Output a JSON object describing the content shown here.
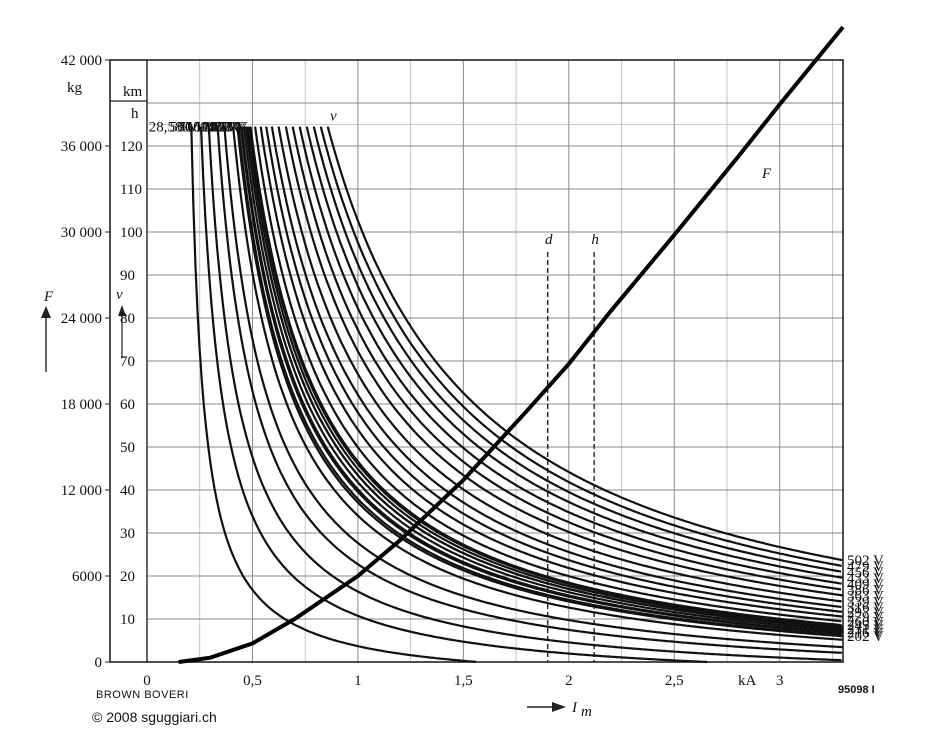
{
  "chart_data": {
    "type": "line",
    "title": "",
    "x_axis": {
      "label": "I",
      "label_sub": "m",
      "unit": "kA",
      "range": [
        0,
        3.3
      ],
      "ticks": [
        {
          "v": 0,
          "t": "0"
        },
        {
          "v": 0.5,
          "t": "0,5"
        },
        {
          "v": 1,
          "t": "1"
        },
        {
          "v": 1.5,
          "t": "1,5"
        },
        {
          "v": 2,
          "t": "2"
        },
        {
          "v": 2.5,
          "t": "2,5"
        },
        {
          "v": 3,
          "t": "3"
        }
      ]
    },
    "y_axis_force": {
      "label": "F",
      "unit": "kg",
      "range": [
        0,
        42000
      ],
      "ticks": [
        {
          "v": 0,
          "t": "0"
        },
        {
          "v": 6000,
          "t": "6000"
        },
        {
          "v": 12000,
          "t": "12 000"
        },
        {
          "v": 18000,
          "t": "18 000"
        },
        {
          "v": 24000,
          "t": "24 000"
        },
        {
          "v": 30000,
          "t": "30 000"
        },
        {
          "v": 36000,
          "t": "36 000"
        },
        {
          "v": 42000,
          "t": "42 000"
        }
      ]
    },
    "y_axis_speed": {
      "label": "v",
      "unit_num": "km",
      "unit_den": "h",
      "range": [
        0,
        140
      ],
      "ticks": [
        {
          "v": 10,
          "t": "10"
        },
        {
          "v": 20,
          "t": "20"
        },
        {
          "v": 30,
          "t": "30"
        },
        {
          "v": 40,
          "t": "40"
        },
        {
          "v": 50,
          "t": "50"
        },
        {
          "v": 60,
          "t": "60"
        },
        {
          "v": 70,
          "t": "70"
        },
        {
          "v": 80,
          "t": "80"
        },
        {
          "v": 90,
          "t": "90"
        },
        {
          "v": 100,
          "t": "100"
        },
        {
          "v": 110,
          "t": "110"
        },
        {
          "v": 120,
          "t": "120"
        }
      ]
    },
    "force_curve": {
      "name": "F",
      "points": [
        [
          0.15,
          0
        ],
        [
          0.3,
          300
        ],
        [
          0.5,
          1300
        ],
        [
          0.7,
          3000
        ],
        [
          1.0,
          6000
        ],
        [
          1.2,
          8500
        ],
        [
          1.5,
          12700
        ],
        [
          1.8,
          17500
        ],
        [
          2.0,
          20800
        ],
        [
          2.2,
          24500
        ],
        [
          2.5,
          29800
        ],
        [
          2.8,
          35200
        ],
        [
          3.0,
          38900
        ],
        [
          3.3,
          44300
        ]
      ]
    },
    "speed_cap": {
      "label": "v",
      "value": 124.5
    },
    "voltage_series": [
      {
        "name": "192 V",
        "k": 38.3,
        "side": "left"
      },
      {
        "name": "183 V",
        "k": 41.6,
        "side": "left"
      },
      {
        "name": "173 V",
        "k": 43.8,
        "side": "left"
      },
      {
        "name": "163 V",
        "k": 42.8,
        "side": "left"
      },
      {
        "name": "153 V",
        "k": 40.2,
        "side": "left"
      },
      {
        "name": "143 V",
        "k": 36.9,
        "side": "left"
      },
      {
        "name": "129 V",
        "k": 33.6,
        "side": "left"
      },
      {
        "name": "109 V",
        "k": 28.2,
        "side": "left"
      },
      {
        "name": "89,5 V",
        "k": 24.0,
        "side": "left"
      },
      {
        "name": "70 V",
        "k": 18.6,
        "side": "left"
      },
      {
        "name": "50 V",
        "k": 13.8,
        "side": "left"
      },
      {
        "name": "28,5 V",
        "k": 7.8,
        "side": "left"
      },
      {
        "name": "202 V",
        "k": 36.2,
        "side": "right"
      },
      {
        "name": "216 V",
        "k": 38.8,
        "side": "right"
      },
      {
        "name": "231 V",
        "k": 41.6,
        "side": "right"
      },
      {
        "name": "245 V",
        "k": 44.3,
        "side": "right"
      },
      {
        "name": "260 V",
        "k": 47.1,
        "side": "right"
      },
      {
        "name": "279 V",
        "k": 50.6,
        "side": "right"
      },
      {
        "name": "297 V",
        "k": 54.0,
        "side": "right"
      },
      {
        "name": "316 V",
        "k": 57.5,
        "side": "right"
      },
      {
        "name": "339 V",
        "k": 61.6,
        "side": "right"
      },
      {
        "name": "363 V",
        "k": 66.1,
        "side": "right"
      },
      {
        "name": "386 V",
        "k": 70.3,
        "side": "right"
      },
      {
        "name": "409 V",
        "k": 74.6,
        "side": "right"
      },
      {
        "name": "433 V",
        "k": 79.0,
        "side": "right"
      },
      {
        "name": "456 V",
        "k": 83.3,
        "side": "right"
      },
      {
        "name": "479 V",
        "k": 87.6,
        "side": "right"
      },
      {
        "name": "502 V",
        "k": 91.9,
        "side": "right"
      }
    ],
    "markers": [
      {
        "label": "d",
        "x": 1.9
      },
      {
        "label": "h",
        "x": 2.12
      }
    ],
    "grid": true
  },
  "footer": {
    "maker": "BROWN BOVERI",
    "copyright": "© 2008 sguggiari.ch",
    "figure_number": "95098 I"
  }
}
